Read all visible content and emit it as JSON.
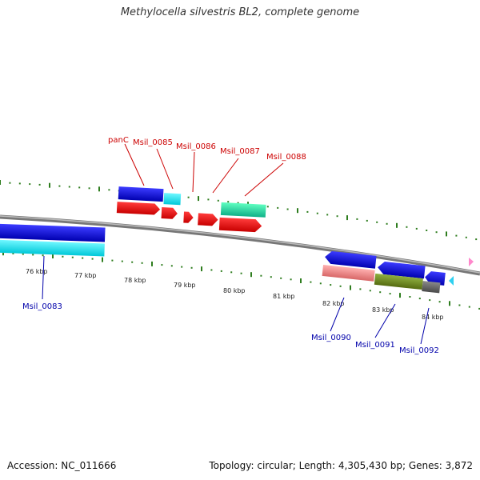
{
  "title": "Methylocella silvestris BL2, complete genome",
  "footer": {
    "accession": "Accession: NC_011666",
    "summary": "Topology: circular; Length: 4,305,430 bp; Genes: 3,872"
  },
  "colors": {
    "label_red": "#cc0000",
    "label_blue": "#0000aa",
    "tick_green": "#2e7d1e",
    "backbone": "#888888"
  },
  "scale_labels": [
    "76 kbp",
    "77 kbp",
    "78 kbp",
    "79 kbp",
    "80 kbp",
    "81 kbp",
    "82 kbp",
    "83 kbp",
    "84 kbp"
  ],
  "top_labels": [
    "panC",
    "Msil_0085",
    "Msil_0086",
    "Msil_0087",
    "Msil_0088"
  ],
  "bottom_labels": [
    "Msil_0083",
    "Msil_0090",
    "Msil_0091",
    "Msil_0092"
  ]
}
